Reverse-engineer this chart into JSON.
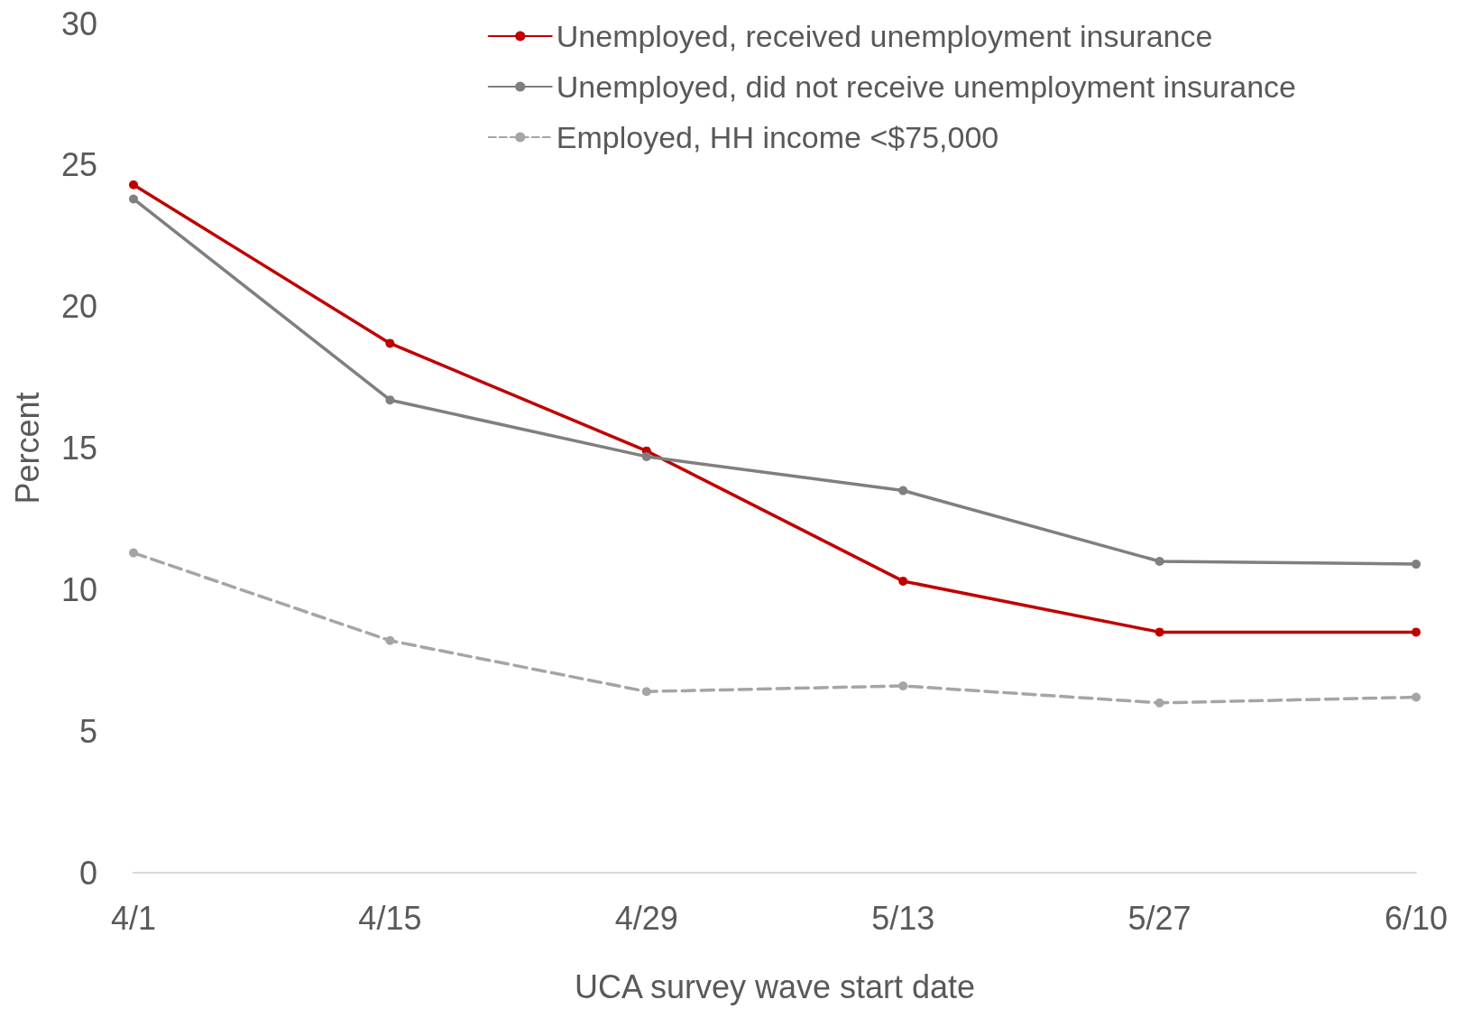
{
  "chart_data": {
    "type": "line",
    "xlabel": "UCA survey wave start date",
    "ylabel": "Percent",
    "categories": [
      "4/1",
      "4/15",
      "4/29",
      "5/13",
      "5/27",
      "6/10"
    ],
    "series": [
      {
        "name": "Unemployed, received unemployment insurance",
        "color": "#c00000",
        "values": [
          24.3,
          18.7,
          14.9,
          10.3,
          8.5,
          8.5
        ]
      },
      {
        "name": "Unemployed, did not receive unemployment insurance",
        "color": "#7f7f7f",
        "values": [
          23.8,
          16.7,
          14.7,
          13.5,
          11.0,
          10.9
        ]
      },
      {
        "name": "Employed, HH income <$75,000",
        "color": "#a5a5a5",
        "line_style": "dashed",
        "values": [
          11.3,
          8.2,
          6.4,
          6.6,
          6.0,
          6.2
        ]
      }
    ],
    "ylim": [
      0,
      30
    ],
    "yticks": [
      0,
      5,
      10,
      15,
      20,
      25,
      30
    ],
    "grid": false,
    "legend": "top right",
    "marker": "circle",
    "line_style": "solid"
  }
}
